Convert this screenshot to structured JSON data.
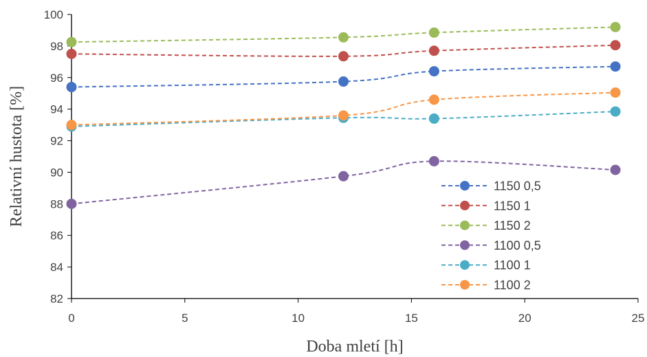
{
  "chart_data": {
    "type": "line",
    "xlabel": "Doba mletí [h]",
    "ylabel": "Relativní hustota [%]",
    "xlim": [
      0,
      25
    ],
    "ylim": [
      82,
      100
    ],
    "xticks": [
      0,
      5,
      10,
      15,
      20,
      25
    ],
    "yticks": [
      82,
      84,
      86,
      88,
      90,
      92,
      94,
      96,
      98,
      100
    ],
    "grid": false,
    "legend_position": "bottom-right",
    "x": [
      0,
      12,
      16,
      24
    ],
    "series": [
      {
        "name": "1150 0,5",
        "color": "#4472C4",
        "values": [
          95.4,
          95.75,
          96.4,
          96.7
        ]
      },
      {
        "name": "1150 1",
        "color": "#C0504D",
        "values": [
          97.5,
          97.35,
          97.7,
          98.05
        ]
      },
      {
        "name": "1150 2",
        "color": "#9BBB59",
        "values": [
          98.25,
          98.55,
          98.85,
          99.2
        ]
      },
      {
        "name": "1100 0,5",
        "color": "#8064A2",
        "values": [
          88.0,
          89.75,
          90.7,
          90.15
        ]
      },
      {
        "name": "1100 1",
        "color": "#4BACC6",
        "values": [
          92.9,
          93.45,
          93.4,
          93.85
        ]
      },
      {
        "name": "1100 2",
        "color": "#F79646",
        "values": [
          93.0,
          93.6,
          94.6,
          95.05
        ]
      }
    ]
  }
}
